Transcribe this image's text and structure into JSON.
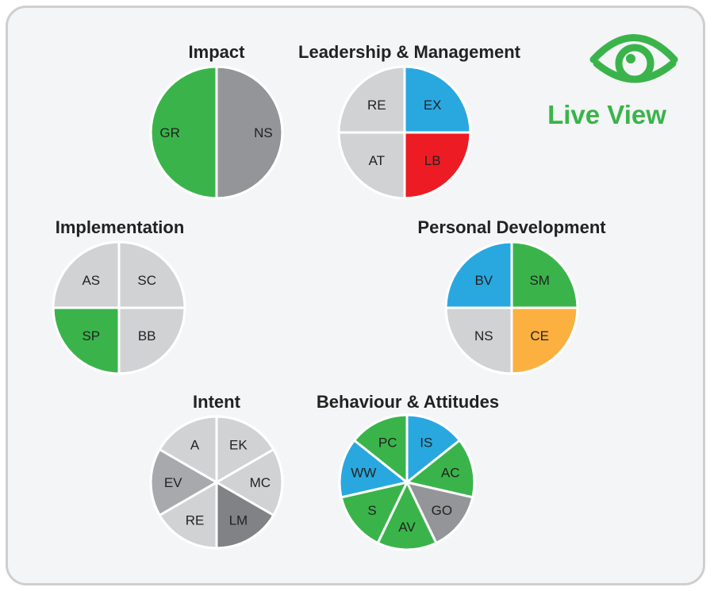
{
  "badge": {
    "label": "Live View",
    "icon": "eye-icon",
    "color": "#3ab44a"
  },
  "colors": {
    "green": "#3ab44a",
    "blue": "#29a8e0",
    "red": "#ed1c24",
    "orange": "#fbb040",
    "light_gray": "#d1d2d4",
    "mid_gray": "#939598",
    "dark_gray": "#808285"
  },
  "pies": [
    {
      "id": "impact",
      "title": "Impact",
      "segments": [
        {
          "label": "NS",
          "color": "#939598"
        },
        {
          "label": "GR",
          "color": "#3ab44a"
        }
      ]
    },
    {
      "id": "leadership",
      "title": "Leadership & Management",
      "segments": [
        {
          "label": "EX",
          "color": "#29a8e0"
        },
        {
          "label": "LB",
          "color": "#ed1c24"
        },
        {
          "label": "AT",
          "color": "#d1d2d4"
        },
        {
          "label": "RE",
          "color": "#d1d2d4"
        }
      ]
    },
    {
      "id": "implementation",
      "title": "Implementation",
      "segments": [
        {
          "label": "SC",
          "color": "#d1d2d4"
        },
        {
          "label": "BB",
          "color": "#d1d2d4"
        },
        {
          "label": "SP",
          "color": "#3ab44a"
        },
        {
          "label": "AS",
          "color": "#d1d2d4"
        }
      ]
    },
    {
      "id": "personal",
      "title": "Personal Development",
      "segments": [
        {
          "label": "SM",
          "color": "#3ab44a"
        },
        {
          "label": "CE",
          "color": "#fbb040"
        },
        {
          "label": "NS",
          "color": "#d1d2d4"
        },
        {
          "label": "BV",
          "color": "#29a8e0"
        }
      ]
    },
    {
      "id": "intent",
      "title": "Intent",
      "segments": [
        {
          "label": "EK",
          "color": "#d1d2d4"
        },
        {
          "label": "MC",
          "color": "#d1d2d4"
        },
        {
          "label": "LM",
          "color": "#808285"
        },
        {
          "label": "RE",
          "color": "#d1d2d4"
        },
        {
          "label": "EV",
          "color": "#a7a9ac"
        },
        {
          "label": "A",
          "color": "#d1d2d4"
        }
      ]
    },
    {
      "id": "behaviour",
      "title": "Behaviour & Attitudes",
      "segments": [
        {
          "label": "IS",
          "color": "#29a8e0"
        },
        {
          "label": "AC",
          "color": "#3ab44a"
        },
        {
          "label": "GO",
          "color": "#939598"
        },
        {
          "label": "AV",
          "color": "#3ab44a"
        },
        {
          "label": "S",
          "color": "#3ab44a"
        },
        {
          "label": "WW",
          "color": "#29a8e0"
        },
        {
          "label": "PC",
          "color": "#3ab44a"
        }
      ]
    }
  ]
}
